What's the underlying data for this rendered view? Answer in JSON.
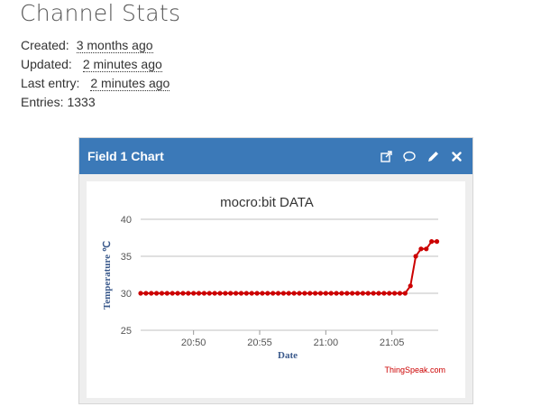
{
  "page": {
    "title": "Channel Stats"
  },
  "stats": {
    "created_label": "Created:",
    "created_value": "3 months ago",
    "updated_label": "Updated:",
    "updated_value": "2 minutes ago",
    "last_entry_label": "Last entry:",
    "last_entry_value": "2 minutes ago",
    "entries_label": "Entries:",
    "entries_value": "1333"
  },
  "card": {
    "title": "Field 1 Chart",
    "header_color": "#3b79b8",
    "actions": [
      "external-link-icon",
      "comment-icon",
      "pencil-icon",
      "close-icon"
    ]
  },
  "chart_data": {
    "type": "line",
    "title": "mocro:bit DATA",
    "xlabel": "Date",
    "ylabel": "Temperature ℃",
    "x_ticks": [
      "20:50",
      "20:55",
      "21:00",
      "21:05"
    ],
    "x_tick_minutes": [
      50,
      55,
      60,
      65
    ],
    "xlim_minutes": [
      46,
      68.5
    ],
    "y_ticks": [
      "25",
      "30",
      "35",
      "40"
    ],
    "ylim": [
      25,
      40
    ],
    "grid": true,
    "credit": "ThingSpeak.com",
    "series": [
      {
        "color": "#cc0000",
        "points": [
          [
            46.0,
            30
          ],
          [
            46.4,
            30
          ],
          [
            46.8,
            30
          ],
          [
            47.2,
            30
          ],
          [
            47.6,
            30
          ],
          [
            48.0,
            30
          ],
          [
            48.4,
            30
          ],
          [
            48.8,
            30
          ],
          [
            49.2,
            30
          ],
          [
            49.6,
            30
          ],
          [
            50.0,
            30
          ],
          [
            50.4,
            30
          ],
          [
            50.8,
            30
          ],
          [
            51.2,
            30
          ],
          [
            51.6,
            30
          ],
          [
            52.0,
            30
          ],
          [
            52.4,
            30
          ],
          [
            52.8,
            30
          ],
          [
            53.2,
            30
          ],
          [
            53.6,
            30
          ],
          [
            54.0,
            30
          ],
          [
            54.4,
            30
          ],
          [
            54.8,
            30
          ],
          [
            55.2,
            30
          ],
          [
            55.6,
            30
          ],
          [
            56.0,
            30
          ],
          [
            56.4,
            30
          ],
          [
            56.8,
            30
          ],
          [
            57.2,
            30
          ],
          [
            57.6,
            30
          ],
          [
            58.0,
            30
          ],
          [
            58.4,
            30
          ],
          [
            58.8,
            30
          ],
          [
            59.2,
            30
          ],
          [
            59.6,
            30
          ],
          [
            60.0,
            30
          ],
          [
            60.4,
            30
          ],
          [
            60.8,
            30
          ],
          [
            61.2,
            30
          ],
          [
            61.6,
            30
          ],
          [
            62.0,
            30
          ],
          [
            62.4,
            30
          ],
          [
            62.8,
            30
          ],
          [
            63.2,
            30
          ],
          [
            63.6,
            30
          ],
          [
            64.0,
            30
          ],
          [
            64.4,
            30
          ],
          [
            64.8,
            30
          ],
          [
            65.2,
            30
          ],
          [
            65.6,
            30
          ],
          [
            66.0,
            30
          ],
          [
            66.4,
            31
          ],
          [
            66.8,
            35
          ],
          [
            67.2,
            36
          ],
          [
            67.6,
            36
          ],
          [
            68.0,
            37
          ],
          [
            68.4,
            37
          ]
        ]
      }
    ]
  }
}
